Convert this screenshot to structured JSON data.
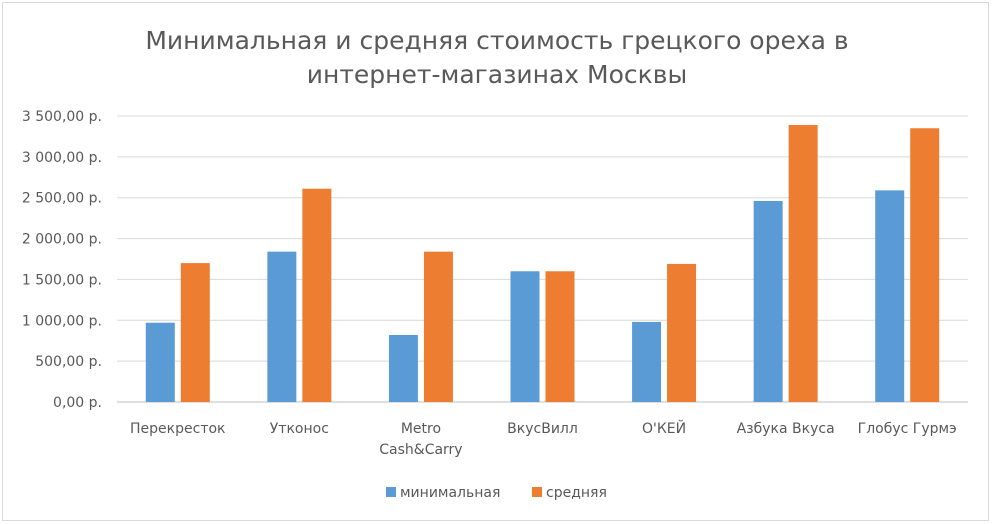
{
  "chart_data": {
    "type": "bar",
    "title_lines": [
      "Минимальная и средняя стоимость грецкого ореха в",
      "интернет-магазинах Москвы"
    ],
    "categories": [
      [
        "Перекресток"
      ],
      [
        "Утконос"
      ],
      [
        "Metro",
        "Cash&Carry"
      ],
      [
        "ВкусВилл"
      ],
      [
        "О'КЕЙ"
      ],
      [
        "Азбука Вкуса"
      ],
      [
        "Глобус Гурмэ"
      ]
    ],
    "series": [
      {
        "name": "минимальная",
        "color": "#5b9bd5",
        "values": [
          970,
          1840,
          820,
          1600,
          980,
          2460,
          2590
        ]
      },
      {
        "name": "средняя",
        "color": "#ed7d31",
        "values": [
          1700,
          2610,
          1840,
          1600,
          1690,
          3390,
          3350
        ]
      }
    ],
    "y_ticks": [
      "0,00 р.",
      "500,00 р.",
      "1 000,00 р.",
      "1 500,00 р.",
      "2 000,00 р.",
      "2 500,00 р.",
      "3 000,00 р.",
      "3 500,00 р."
    ],
    "ylim": [
      0,
      3500
    ],
    "ystep": 500,
    "grid": true,
    "legend_position": "bottom",
    "xlabel": "",
    "ylabel": ""
  }
}
